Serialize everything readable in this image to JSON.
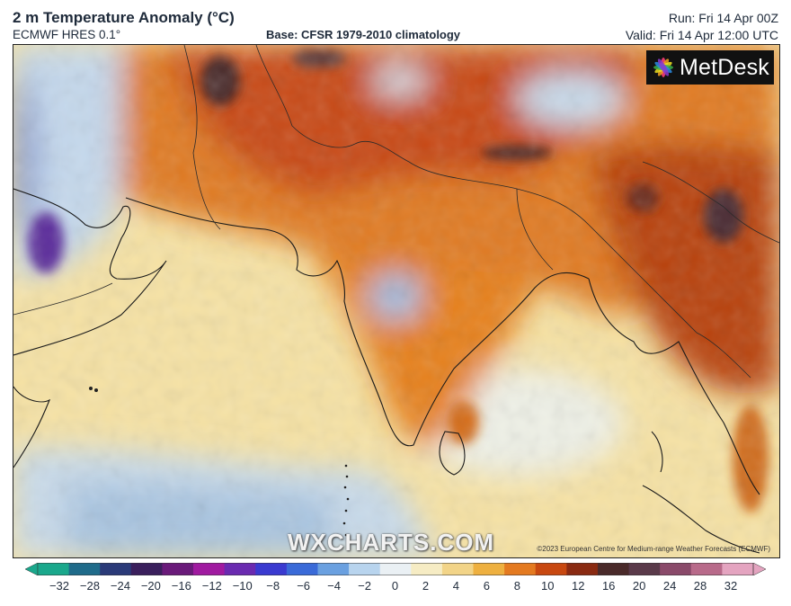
{
  "header": {
    "title": "2 m Temperature Anomaly (°C)",
    "model": "ECMWF HRES 0.1°",
    "base": "Base: CFSR 1979-2010 climatology",
    "run": "Run: Fri 14 Apr 00Z",
    "valid": "Valid: Fri 14 Apr 12:00 UTC"
  },
  "logo": {
    "text": "MetDesk"
  },
  "watermark": "WXCHARTS.COM",
  "copyright": "©2023 European Centre for Medium-range Weather Forecasts (ECMWF)",
  "colorbar": {
    "ticks": [
      "−32",
      "−28",
      "−24",
      "−20",
      "−16",
      "−12",
      "−10",
      "−8",
      "−6",
      "−4",
      "−2",
      "0",
      "2",
      "4",
      "6",
      "8",
      "10",
      "12",
      "16",
      "20",
      "24",
      "28",
      "32"
    ],
    "colors": [
      "#1aa88c",
      "#1f6b8a",
      "#2a3a78",
      "#3a1f5c",
      "#6a1a7a",
      "#a01aa0",
      "#6a2ab0",
      "#3a3ad0",
      "#3a6ad8",
      "#6aa0e0",
      "#b8d4ee",
      "#eaf0f4",
      "#f6ecc4",
      "#f2d488",
      "#eeb040",
      "#e47a20",
      "#c84810",
      "#8a2a12",
      "#4a2a2a",
      "#5a3a4a",
      "#8a4a6a",
      "#b86a8a",
      "#e4a4c0"
    ],
    "accent_colors": {
      "hot": "#c84810",
      "cold": "#3a6ad8",
      "neutral": "#f6ecc4"
    }
  }
}
